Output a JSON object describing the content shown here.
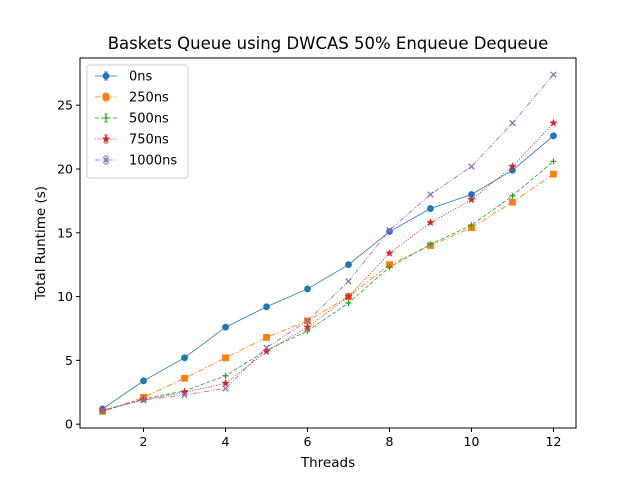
{
  "chart_data": {
    "type": "line",
    "title": "Baskets Queue using DWCAS 50% Enqueue Dequeue",
    "xlabel": "Threads",
    "ylabel": "Total Runtime (s)",
    "xlim": [
      0.45,
      12.55
    ],
    "ylim": [
      -0.3,
      28.7
    ],
    "xticks": [
      2,
      4,
      6,
      8,
      10,
      12
    ],
    "yticks": [
      0,
      5,
      10,
      15,
      20,
      25
    ],
    "grid": false,
    "legend_position": "top-left",
    "x": [
      1,
      2,
      3,
      4,
      5,
      6,
      7,
      8,
      9,
      10,
      11,
      12
    ],
    "series": [
      {
        "name": "0ns",
        "color": "#1f77b4",
        "marker": "circle",
        "dash": "solid",
        "values": [
          1.2,
          3.4,
          5.2,
          7.6,
          9.2,
          10.6,
          12.5,
          15.1,
          16.9,
          18.0,
          19.9,
          22.6
        ]
      },
      {
        "name": "250ns",
        "color": "#ff7f0e",
        "marker": "square",
        "dash": "dashdot",
        "values": [
          1.0,
          2.1,
          3.6,
          5.2,
          6.8,
          8.1,
          10.0,
          12.5,
          14.0,
          15.4,
          17.4,
          19.6
        ]
      },
      {
        "name": "500ns",
        "color": "#2ca02c",
        "marker": "plus",
        "dash": "dashed",
        "values": [
          1.0,
          2.0,
          2.6,
          3.8,
          5.8,
          7.3,
          9.5,
          12.3,
          14.1,
          15.6,
          17.9,
          20.6
        ]
      },
      {
        "name": "750ns",
        "color": "#d62728",
        "marker": "star",
        "dash": "dotted",
        "values": [
          1.1,
          1.9,
          2.5,
          3.2,
          5.7,
          7.6,
          10.0,
          13.4,
          15.8,
          17.6,
          20.2,
          23.6
        ]
      },
      {
        "name": "1000ns",
        "color": "#9467bd",
        "marker": "x",
        "dash": "dashdotted",
        "values": [
          1.1,
          1.9,
          2.3,
          2.8,
          6.0,
          8.1,
          11.2,
          15.2,
          18.0,
          20.2,
          23.6,
          27.4
        ]
      }
    ]
  }
}
